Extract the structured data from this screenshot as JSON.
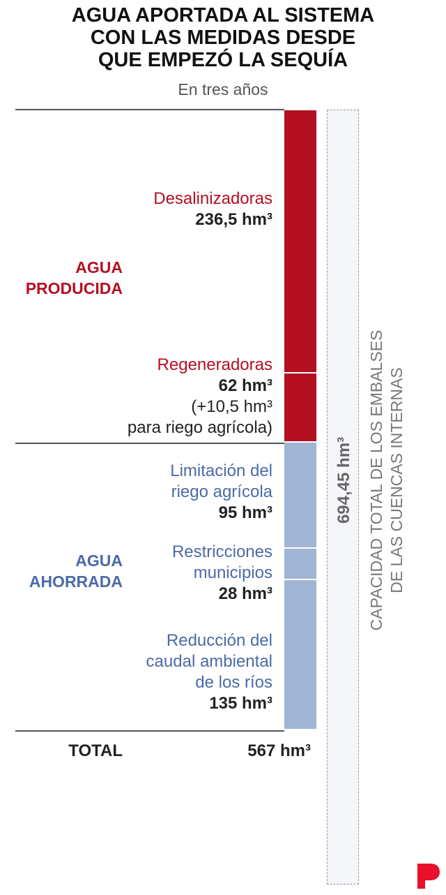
{
  "title": {
    "line1": "AGUA APORTADA AL SISTEMA",
    "line2": "CON LAS MEDIDAS DESDE",
    "line3": "QUE EMPEZÓ LA SEQUÍA"
  },
  "subtitle": "En tres años",
  "groups": {
    "produced": {
      "line1": "AGUA",
      "line2": "PRODUCIDA"
    },
    "saved": {
      "line1": "AGUA",
      "line2": "AHORRADA"
    }
  },
  "labels": {
    "desalinizadoras": {
      "name": "Desalinizadoras",
      "value": "236,5 hm³"
    },
    "regeneradoras": {
      "name": "Regeneradoras",
      "value": "62 hm³",
      "extra1": "(+10,5 hm³",
      "extra2": "para riego agrícola)"
    },
    "limitacion": {
      "name1": "Limitación del",
      "name2": "riego agrícola",
      "value": "95 hm³"
    },
    "restricciones": {
      "name1": "Restricciones",
      "name2": "municipios",
      "value": "28 hm³"
    },
    "reduccion": {
      "name1": "Reducción del",
      "name2": "caudal ambiental",
      "name3": "de los ríos",
      "value": "135 hm³"
    }
  },
  "total": {
    "label": "TOTAL",
    "value": "567 hm³"
  },
  "capacity": {
    "value": "694,45 hm³",
    "line1": "CAPACIDAD TOTAL DE LOS EMBALSES",
    "line2": "DE LAS CUENCAS INTERNAS"
  },
  "colors": {
    "produced": "#b50f22",
    "saved": "#a0b4d4",
    "logo": "#e8102a"
  },
  "chart_data": {
    "type": "bar",
    "stacked": true,
    "unit": "hm³",
    "categories": [
      "Desalinizadoras",
      "Regeneradoras",
      "Limitación del riego agrícola",
      "Restricciones municipios",
      "Reducción del caudal ambiental de los ríos"
    ],
    "values": [
      236.5,
      62,
      95,
      28,
      135
    ],
    "groups": [
      "AGUA PRODUCIDA",
      "AGUA PRODUCIDA",
      "AGUA AHORRADA",
      "AGUA AHORRADA",
      "AGUA AHORRADA"
    ],
    "total": 567,
    "reference": 694.45
  }
}
